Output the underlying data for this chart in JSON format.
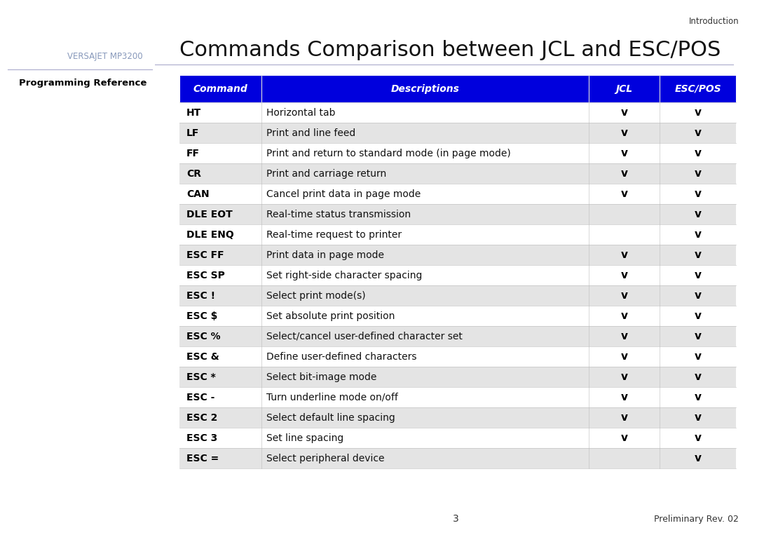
{
  "title": "Commands Comparison between JCL and ESC/POS",
  "sidebar_title": "VERSAJET MP3200",
  "sidebar_subtitle": "Programming Reference",
  "header_bg": "#0000DD",
  "header_text_color": "#FFFFFF",
  "page_bg": "#FFFFFF",
  "sidebar_bg": "#D0E8F8",
  "row_alt_bg": "#E4E4E4",
  "row_bg": "#FFFFFF",
  "footer_page": "3",
  "footer_right": "Preliminary Rev. 02",
  "top_right_text": "Introduction",
  "columns": [
    "Command",
    "Descriptions",
    "JCL",
    "ESC/POS"
  ],
  "rows": [
    {
      "cmd": "HT",
      "desc": "Horizontal tab",
      "jcl": true,
      "esc": true
    },
    {
      "cmd": "LF",
      "desc": "Print and line feed",
      "jcl": true,
      "esc": true
    },
    {
      "cmd": "FF",
      "desc": "Print and return to standard mode (in page mode)",
      "jcl": true,
      "esc": true
    },
    {
      "cmd": "CR",
      "desc": "Print and carriage return",
      "jcl": true,
      "esc": true
    },
    {
      "cmd": "CAN",
      "desc": "Cancel print data in page mode",
      "jcl": true,
      "esc": true
    },
    {
      "cmd": "DLE EOT",
      "desc": "Real-time status transmission",
      "jcl": false,
      "esc": true
    },
    {
      "cmd": "DLE ENQ",
      "desc": "Real-time request to printer",
      "jcl": false,
      "esc": true
    },
    {
      "cmd": "ESC FF",
      "desc": "Print data in page mode",
      "jcl": true,
      "esc": true
    },
    {
      "cmd": "ESC SP",
      "desc": "Set right-side character spacing",
      "jcl": true,
      "esc": true
    },
    {
      "cmd": "ESC !",
      "desc": "Select print mode(s)",
      "jcl": true,
      "esc": true
    },
    {
      "cmd": "ESC $",
      "desc": "Set absolute print position",
      "jcl": true,
      "esc": true
    },
    {
      "cmd": "ESC %",
      "desc": "Select/cancel user-defined character set",
      "jcl": true,
      "esc": true
    },
    {
      "cmd": "ESC &",
      "desc": "Define user-defined characters",
      "jcl": true,
      "esc": true
    },
    {
      "cmd": "ESC *",
      "desc": "Select bit-image mode",
      "jcl": true,
      "esc": true
    },
    {
      "cmd": "ESC -",
      "desc": "Turn underline mode on/off",
      "jcl": true,
      "esc": true
    },
    {
      "cmd": "ESC 2",
      "desc": "Select default line spacing",
      "jcl": true,
      "esc": true
    },
    {
      "cmd": "ESC 3",
      "desc": "Set line spacing",
      "jcl": true,
      "esc": true
    },
    {
      "cmd": "ESC =",
      "desc": "Select peripheral device",
      "jcl": false,
      "esc": true
    }
  ]
}
